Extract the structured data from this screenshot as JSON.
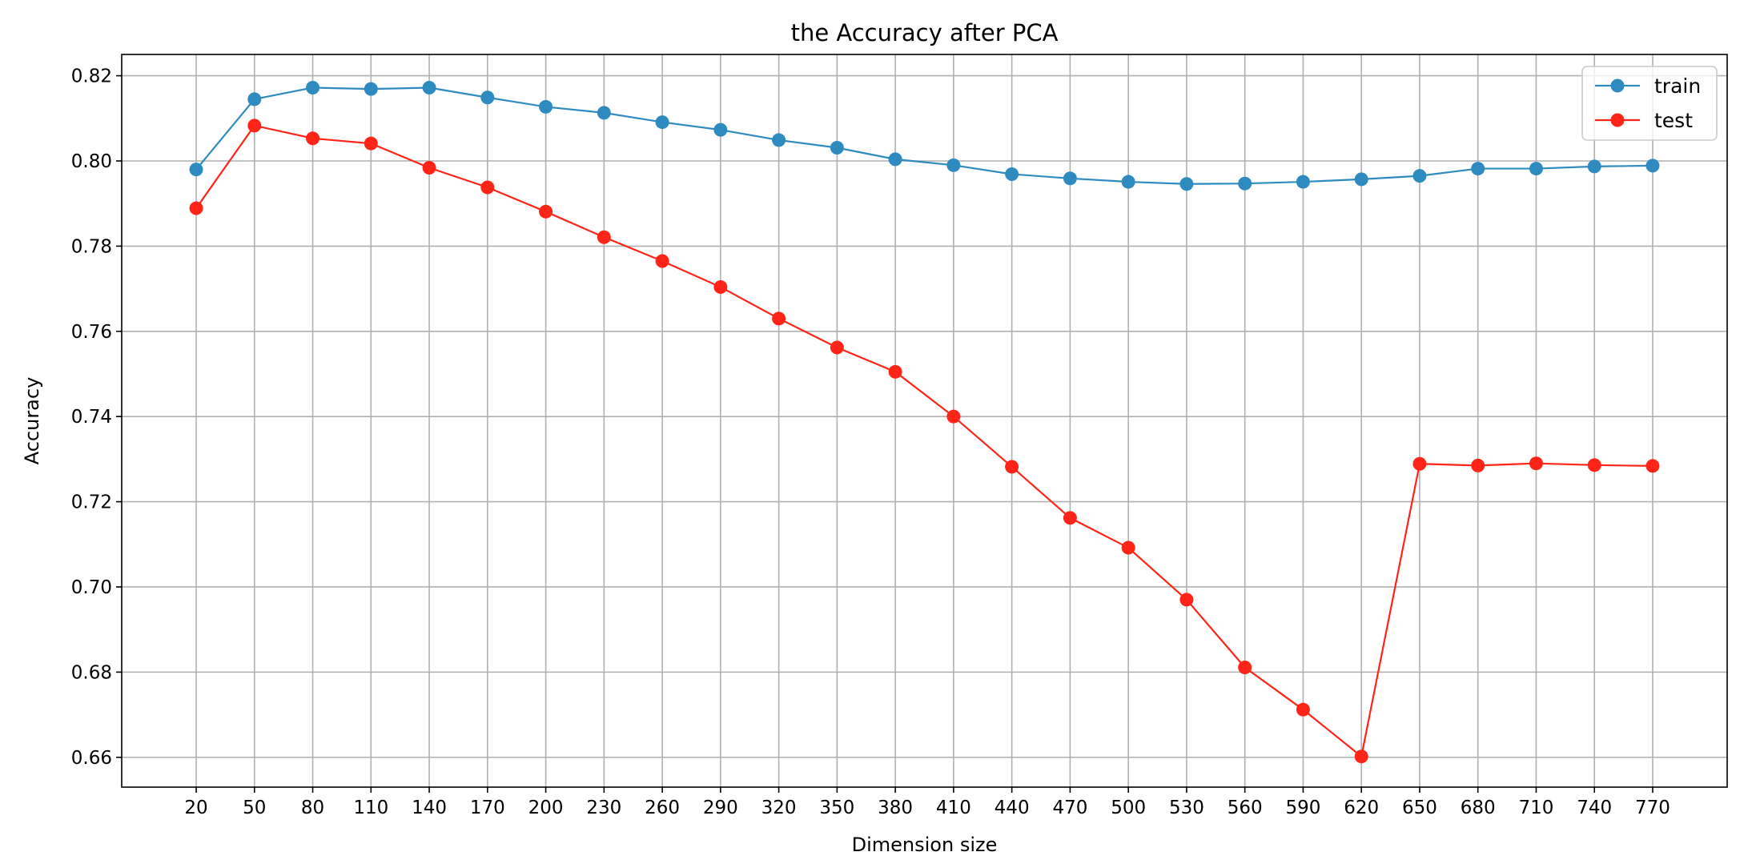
{
  "chart_data": {
    "type": "line",
    "title": "the Accuracy after PCA",
    "xlabel": "Dimension size",
    "ylabel": "Accuracy",
    "x": [
      20,
      50,
      80,
      110,
      140,
      170,
      200,
      230,
      260,
      290,
      320,
      350,
      380,
      410,
      440,
      470,
      500,
      530,
      560,
      590,
      620,
      650,
      680,
      710,
      740,
      770
    ],
    "ylim": [
      0.653,
      0.825
    ],
    "yticks": [
      0.66,
      0.68,
      0.7,
      0.72,
      0.74,
      0.76,
      0.78,
      0.8,
      0.82
    ],
    "ytick_labels": [
      "0.66",
      "0.68",
      "0.70",
      "0.72",
      "0.74",
      "0.76",
      "0.78",
      "0.80",
      "0.82"
    ],
    "grid": true,
    "legend_position": "top-right",
    "series": [
      {
        "name": "train",
        "color": "#2e8bc0",
        "marker": "circle",
        "values": [
          0.798,
          0.8145,
          0.8172,
          0.8169,
          0.8172,
          0.8149,
          0.8127,
          0.8113,
          0.8091,
          0.8073,
          0.8049,
          0.8031,
          0.8004,
          0.799,
          0.7969,
          0.7959,
          0.7951,
          0.7946,
          0.7947,
          0.7951,
          0.7957,
          0.7965,
          0.7982,
          0.7982,
          0.7987,
          0.7989
        ]
      },
      {
        "name": "test",
        "color": "#ff2418",
        "marker": "circle",
        "values": [
          0.7889,
          0.8083,
          0.8053,
          0.8041,
          0.7984,
          0.7938,
          0.7881,
          0.7821,
          0.7765,
          0.7704,
          0.763,
          0.7562,
          0.7505,
          0.74,
          0.7282,
          0.7162,
          0.7092,
          0.697,
          0.6811,
          0.6712,
          0.6602,
          0.7289,
          0.7285,
          0.729,
          0.7286,
          0.7284
        ]
      }
    ]
  }
}
